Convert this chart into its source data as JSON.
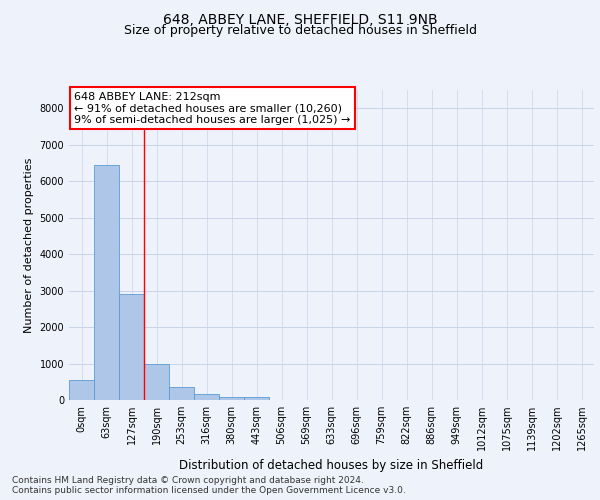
{
  "title1": "648, ABBEY LANE, SHEFFIELD, S11 9NB",
  "title2": "Size of property relative to detached houses in Sheffield",
  "xlabel": "Distribution of detached houses by size in Sheffield",
  "ylabel": "Number of detached properties",
  "bar_labels": [
    "0sqm",
    "63sqm",
    "127sqm",
    "190sqm",
    "253sqm",
    "316sqm",
    "380sqm",
    "443sqm",
    "506sqm",
    "569sqm",
    "633sqm",
    "696sqm",
    "759sqm",
    "822sqm",
    "886sqm",
    "949sqm",
    "1012sqm",
    "1075sqm",
    "1139sqm",
    "1202sqm",
    "1265sqm"
  ],
  "bar_values": [
    560,
    6430,
    2910,
    985,
    350,
    160,
    90,
    70,
    0,
    0,
    0,
    0,
    0,
    0,
    0,
    0,
    0,
    0,
    0,
    0,
    0
  ],
  "bar_color": "#aec6e8",
  "bar_edge_color": "#5b9bd5",
  "grid_color": "#c8d4e8",
  "background_color": "#eef2fa",
  "red_line_x": 2.5,
  "annotation_line1": "648 ABBEY LANE: 212sqm",
  "annotation_line2": "← 91% of detached houses are smaller (10,260)",
  "annotation_line3": "9% of semi-detached houses are larger (1,025) →",
  "ylim": [
    0,
    8500
  ],
  "yticks": [
    0,
    1000,
    2000,
    3000,
    4000,
    5000,
    6000,
    7000,
    8000
  ],
  "footer": "Contains HM Land Registry data © Crown copyright and database right 2024.\nContains public sector information licensed under the Open Government Licence v3.0.",
  "title1_fontsize": 10,
  "title2_fontsize": 9,
  "xlabel_fontsize": 8.5,
  "ylabel_fontsize": 8,
  "tick_fontsize": 7,
  "annotation_fontsize": 8,
  "footer_fontsize": 6.5
}
